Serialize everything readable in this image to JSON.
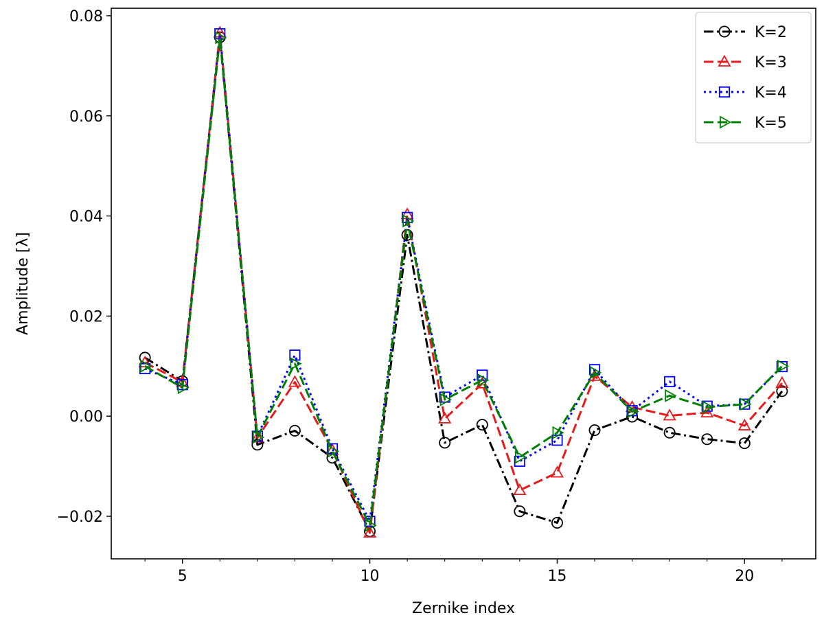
{
  "chart_data": {
    "type": "line",
    "xlabel": "Zernike index",
    "ylabel": "Amplitude [λ]",
    "xlim": [
      3.1,
      21.9
    ],
    "ylim": [
      -0.0285,
      0.0815
    ],
    "x_ticks": [
      5,
      10,
      15,
      20
    ],
    "x_minor_ticks": [
      4,
      6,
      7,
      8,
      9,
      11,
      12,
      13,
      14,
      16,
      17,
      18,
      19,
      21
    ],
    "y_ticks": [
      -0.02,
      0.0,
      0.02,
      0.04,
      0.06,
      0.08
    ],
    "y_tick_labels": [
      "−0.02",
      "0.00",
      "0.02",
      "0.04",
      "0.06",
      "0.08"
    ],
    "x_tick_labels": [
      "5",
      "10",
      "15",
      "20"
    ],
    "grid": false,
    "legend_position": "top-right",
    "x": [
      4,
      5,
      6,
      7,
      8,
      9,
      10,
      11,
      12,
      13,
      14,
      15,
      16,
      17,
      18,
      19,
      20,
      21
    ],
    "series": [
      {
        "name": "K=2",
        "color": "#000000",
        "line_style": "dashdot",
        "marker": "circle",
        "values": [
          0.0117,
          0.007,
          0.0757,
          -0.0057,
          -0.0029,
          -0.0083,
          -0.023,
          0.0362,
          -0.0053,
          -0.0017,
          -0.019,
          -0.0213,
          -0.0028,
          -0.0001,
          -0.0033,
          -0.0046,
          -0.0054,
          0.005
        ]
      },
      {
        "name": "K=3",
        "color": "#e41a1c",
        "line_style": "dashed",
        "marker": "triangle-up",
        "values": [
          0.0107,
          0.0068,
          0.0766,
          -0.0043,
          0.0068,
          -0.0068,
          -0.0233,
          0.0403,
          -0.0005,
          0.0065,
          -0.0148,
          -0.0113,
          0.008,
          0.0018,
          0.0001,
          0.0007,
          -0.0019,
          0.0066
        ]
      },
      {
        "name": "K=4",
        "color": "#0000ff",
        "line_style": "dotted",
        "marker": "square",
        "values": [
          0.0095,
          0.0063,
          0.0764,
          -0.004,
          0.0122,
          -0.0065,
          -0.021,
          0.0397,
          0.0038,
          0.0082,
          -0.009,
          -0.0048,
          0.0093,
          0.0011,
          0.0069,
          0.002,
          0.0024,
          0.0099
        ]
      },
      {
        "name": "K=5",
        "color": "#008000",
        "line_style": "dashed",
        "marker": "triangle-right",
        "values": [
          0.01,
          0.0057,
          0.0756,
          -0.0042,
          0.0105,
          -0.007,
          -0.0218,
          0.039,
          0.0033,
          0.0072,
          -0.0082,
          -0.0033,
          0.0087,
          0.0009,
          0.0041,
          0.0018,
          0.0024,
          0.01
        ]
      }
    ]
  }
}
